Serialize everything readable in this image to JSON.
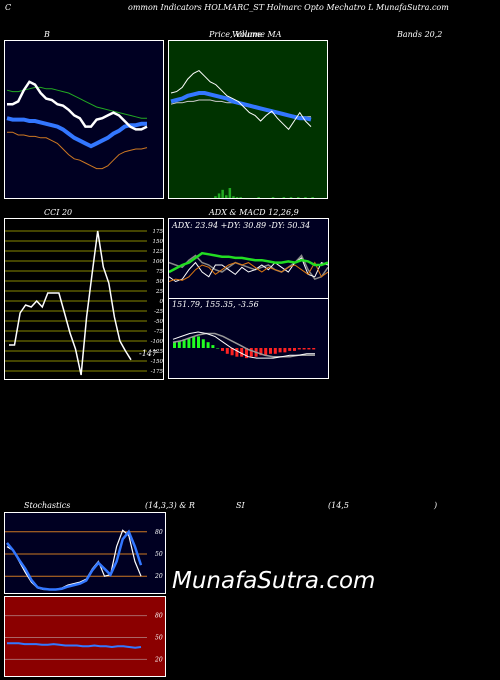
{
  "header": {
    "c": "C",
    "title": "ommon  Indicators HOLMARC_ST Holmarc Opto  Mechatro  L  MunafaSutra.com"
  },
  "labels": {
    "bollinger_b": "B",
    "price_volume": "Price,  Volume  MA",
    "volume_overlap": "Volume",
    "bands": "Bands 20,2",
    "cci": "CCI 20",
    "adx_macd": "ADX  & MACD 12,26,9",
    "adx_values": "ADX: 23.94  +DY: 30.89 -DY: 50.34",
    "macd_values": "151.79,  155.35,  -3.56",
    "stoch_a": "Stochastics",
    "stoch_b": "(14,3,3) & R",
    "stoch_c": "SI",
    "stoch_d": "(14,5",
    "stoch_e": ")"
  },
  "watermark": "MunafaSutra.com",
  "colors": {
    "panel_dark": "#000022",
    "panel_green": "#003300",
    "panel_red": "#8b0000",
    "band_orange": "#cc7722",
    "band_green": "#22aa22",
    "mid_blue": "#3377ff",
    "price_white": "#ffffff",
    "cci_grid": "#888800",
    "adx_green": "#22dd22",
    "adx_orange": "#dd7711",
    "macd_red": "#ff2222",
    "macd_green": "#22ff22",
    "rsi_grid": "#aa6666"
  },
  "chart_data": [
    {
      "type": "line",
      "panel": "bollinger",
      "series": [
        {
          "values": [
            2,
            2,
            4,
            12,
            18,
            16,
            10,
            6,
            5,
            2,
            1,
            -2,
            -6,
            -8,
            -14,
            -14,
            -9,
            -8,
            -6,
            -4,
            -6,
            -10,
            -14,
            -16,
            -16,
            -14
          ]
        },
        {
          "values": [
            12,
            11,
            11,
            12,
            13,
            14,
            14,
            13,
            13,
            12,
            11,
            10,
            8,
            6,
            4,
            2,
            0,
            -1,
            -2,
            -3,
            -4,
            -5,
            -6,
            -7,
            -8,
            -8
          ]
        },
        {
          "values": [
            -8,
            -9,
            -9,
            -9,
            -10,
            -10,
            -11,
            -12,
            -13,
            -14,
            -16,
            -19,
            -22,
            -24,
            -26,
            -28,
            -26,
            -24,
            -22,
            -19,
            -17,
            -14,
            -13,
            -13,
            -12,
            -12
          ]
        },
        {
          "values": [
            -18,
            -18,
            -20,
            -20,
            -21,
            -21,
            -22,
            -22,
            -24,
            -26,
            -30,
            -34,
            -37,
            -38,
            -40,
            -42,
            -44,
            -44,
            -42,
            -38,
            -34,
            -32,
            -31,
            -30,
            -30,
            -29
          ]
        }
      ],
      "y_range": [
        -60,
        40
      ]
    },
    {
      "type": "line",
      "panel": "price",
      "series": [
        {
          "values": [
            10,
            11,
            14,
            20,
            24,
            26,
            22,
            18,
            16,
            12,
            8,
            6,
            4,
            0,
            -4,
            -6,
            -10,
            -6,
            -3,
            -8,
            -12,
            -16,
            -10,
            -4,
            -10,
            -14
          ]
        },
        {
          "values": [
            4,
            5,
            6,
            8,
            9,
            10,
            10,
            9,
            8,
            7,
            6,
            4,
            3,
            2,
            1,
            0,
            -1,
            -2,
            -3,
            -4,
            -5,
            -6,
            -7,
            -8,
            -8,
            -9
          ]
        },
        {
          "values": [
            2,
            3,
            3,
            4,
            4,
            5,
            5,
            5,
            4,
            4,
            3,
            3,
            2,
            1,
            0,
            -1,
            -2,
            -3,
            -4,
            -4,
            -5,
            -6,
            -6,
            -7,
            -7,
            -7
          ]
        }
      ],
      "volume": [
        0,
        0,
        0,
        0,
        0,
        0,
        0,
        0,
        0,
        0,
        0,
        0,
        2,
        5,
        9,
        3,
        11,
        2,
        1,
        1,
        0,
        0,
        0,
        0,
        1,
        0,
        0,
        0,
        1,
        0,
        0,
        1,
        0,
        1,
        0,
        1,
        0,
        1,
        0,
        1
      ],
      "y_range": [
        -60,
        40
      ]
    },
    {
      "type": "line",
      "panel": "cci",
      "series": [
        {
          "values": [
            -110,
            -110,
            -30,
            -10,
            -15,
            0,
            -15,
            20,
            20,
            20,
            -30,
            -80,
            -120,
            -185,
            -40,
            70,
            175,
            85,
            45,
            -40,
            -100,
            -125,
            -147
          ]
        }
      ],
      "y_range": [
        -175,
        175
      ],
      "ticks": [
        "175",
        "150",
        "125",
        "100",
        "75",
        "50",
        "25",
        "0",
        "-25",
        "-50",
        "-75",
        "-100",
        "-125",
        "-150",
        "-175"
      ],
      "last_label": "-147"
    },
    {
      "type": "line",
      "panel": "adx",
      "series": [
        {
          "values": [
            22,
            25,
            28,
            30,
            34,
            38,
            37,
            36,
            35,
            35,
            34,
            34,
            33,
            32,
            32,
            31,
            30,
            30,
            31,
            30,
            32,
            31,
            28,
            28,
            30
          ]
        },
        {
          "values": [
            14,
            16,
            15,
            18,
            24,
            28,
            26,
            20,
            24,
            28,
            30,
            28,
            30,
            26,
            22,
            26,
            24,
            22,
            26,
            28,
            24,
            20,
            30,
            18,
            22
          ]
        },
        {
          "values": [
            18,
            14,
            16,
            24,
            30,
            22,
            18,
            28,
            28,
            24,
            20,
            26,
            22,
            24,
            28,
            24,
            30,
            26,
            22,
            30,
            34,
            20,
            18,
            30,
            28
          ]
        },
        {
          "values": [
            30,
            28,
            26,
            32,
            36,
            30,
            28,
            24,
            22,
            26,
            30,
            28,
            26,
            24,
            26,
            28,
            24,
            22,
            26,
            30,
            36,
            24,
            16,
            18,
            26
          ]
        }
      ],
      "y_range": [
        0,
        50
      ]
    },
    {
      "type": "bar",
      "panel": "macd",
      "hist": [
        4,
        5,
        6,
        7,
        8,
        8,
        6,
        4,
        2,
        0,
        -2,
        -4,
        -5,
        -6,
        -6,
        -7,
        -6,
        -6,
        -5,
        -5,
        -4,
        -4,
        -3,
        -3,
        -2,
        -2,
        -1,
        -1,
        -1,
        -1
      ],
      "series": [
        {
          "values": [
            6,
            8,
            10,
            11,
            10,
            8,
            4,
            0,
            -3,
            -6,
            -7,
            -7,
            -7,
            -6,
            -5,
            -5,
            -4,
            -4
          ]
        },
        {
          "values": [
            4,
            5,
            7,
            9,
            10,
            10,
            8,
            5,
            2,
            -1,
            -3,
            -5,
            -6,
            -6,
            -6,
            -5,
            -5,
            -5
          ]
        }
      ],
      "y_range": [
        -20,
        20
      ]
    },
    {
      "type": "line",
      "panel": "stochastics",
      "series": [
        {
          "values": [
            60,
            55,
            40,
            25,
            12,
            4,
            2,
            2,
            2,
            4,
            8,
            10,
            12,
            16,
            30,
            40,
            20,
            22,
            60,
            82,
            75,
            40,
            20
          ]
        },
        {
          "values": [
            65,
            55,
            42,
            30,
            15,
            5,
            3,
            2,
            2,
            3,
            6,
            8,
            10,
            14,
            28,
            38,
            30,
            22,
            40,
            70,
            80,
            60,
            35
          ]
        }
      ],
      "grid": [
        "80",
        "50",
        "20"
      ],
      "y_range": [
        0,
        100
      ]
    },
    {
      "type": "line",
      "panel": "rsi",
      "series": [
        {
          "values": [
            42,
            42,
            42,
            41,
            41,
            41,
            40,
            40,
            41,
            40,
            39,
            39,
            39,
            38,
            38,
            39,
            38,
            38,
            37,
            38,
            38,
            37,
            36,
            37
          ]
        }
      ],
      "grid": [
        "80",
        "50",
        "20"
      ],
      "y_range": [
        0,
        100
      ]
    }
  ]
}
